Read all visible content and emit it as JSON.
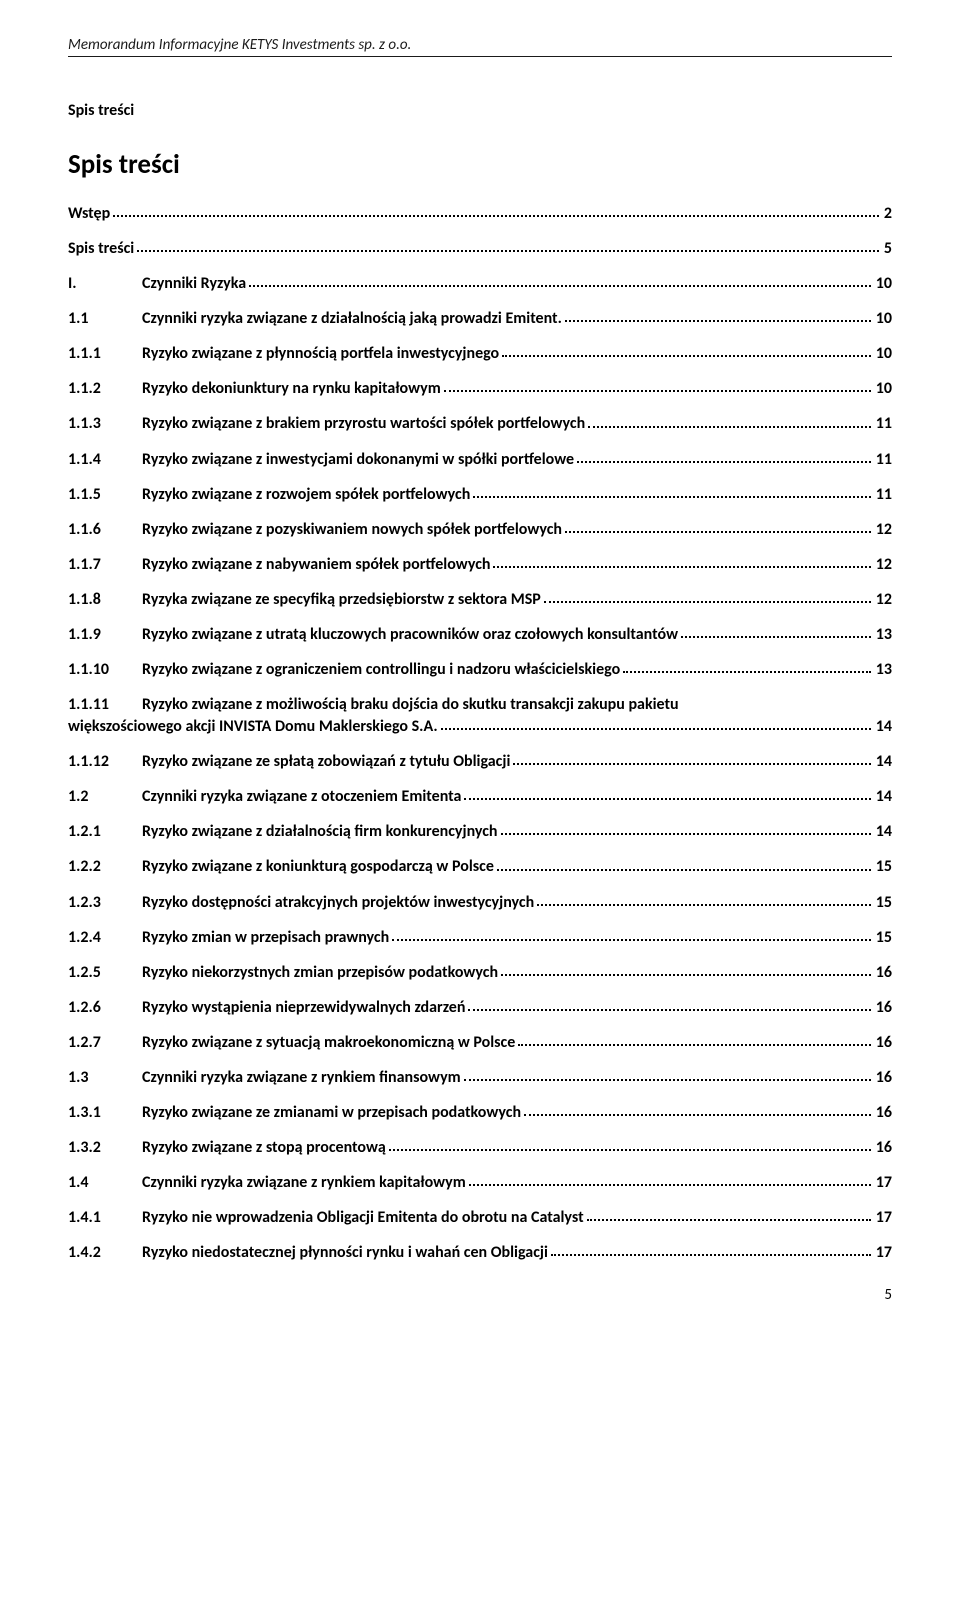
{
  "header": "Memorandum Informacyjne KETYS Investments sp. z o.o.",
  "section_label": "Spis treści",
  "main_title": "Spis treści",
  "page_number": "5",
  "toc": [
    {
      "num": "",
      "text": "Wstęp",
      "page": "2"
    },
    {
      "num": "",
      "text": "Spis treści",
      "page": "5"
    },
    {
      "num": "I.",
      "text": "Czynniki Ryzyka",
      "page": "10"
    },
    {
      "num": "1.1",
      "text": "Czynniki ryzyka związane z działalnością jaką prowadzi Emitent.",
      "page": "10"
    },
    {
      "num": "1.1.1",
      "text": "Ryzyko związane z płynnością portfela inwestycyjnego",
      "page": "10"
    },
    {
      "num": "1.1.2",
      "text": "Ryzyko dekoniunktury na rynku kapitałowym",
      "page": "10"
    },
    {
      "num": "1.1.3",
      "text": "Ryzyko związane z brakiem przyrostu wartości spółek portfelowych",
      "page": "11"
    },
    {
      "num": "1.1.4",
      "text": "Ryzyko związane z inwestycjami dokonanymi w spółki portfelowe",
      "page": "11"
    },
    {
      "num": "1.1.5",
      "text": "Ryzyko związane z rozwojem spółek portfelowych",
      "page": "11"
    },
    {
      "num": "1.1.6",
      "text": "Ryzyko związane z pozyskiwaniem nowych spółek portfelowych",
      "page": "12"
    },
    {
      "num": "1.1.7",
      "text": "Ryzyko związane z nabywaniem spółek portfelowych",
      "page": "12"
    },
    {
      "num": "1.1.8",
      "text": "Ryzyka związane ze specyfiką przedsiębiorstw z sektora MSP",
      "page": "12"
    },
    {
      "num": "1.1.9",
      "text": "Ryzyko związane z utratą kluczowych pracowników oraz czołowych konsultantów",
      "page": "13"
    },
    {
      "num": "1.1.10",
      "text": "Ryzyko związane z ograniczeniem controllingu i nadzoru właścicielskiego",
      "page": "13"
    },
    {
      "num": "1.1.11",
      "wrap": true,
      "text1": "Ryzyko  związane  z  możliwością  braku  dojścia  do  skutku  transakcji  zakupu  pakietu",
      "text2": "większościowego akcji INVISTA Domu Maklerskiego S.A.",
      "page": "14"
    },
    {
      "num": "1.1.12",
      "text": "Ryzyko związane ze spłatą zobowiązań z tytułu Obligacji",
      "page": "14"
    },
    {
      "num": "1.2",
      "text": "Czynniki ryzyka związane z otoczeniem Emitenta",
      "page": "14"
    },
    {
      "num": "1.2.1",
      "text": "Ryzyko związane z działalnością firm konkurencyjnych",
      "page": "14"
    },
    {
      "num": "1.2.2",
      "text": "Ryzyko związane z koniunkturą gospodarczą w Polsce",
      "page": "15"
    },
    {
      "num": "1.2.3",
      "text": "Ryzyko dostępności atrakcyjnych projektów inwestycyjnych",
      "page": "15"
    },
    {
      "num": "1.2.4",
      "text": "Ryzyko zmian w przepisach prawnych",
      "page": "15"
    },
    {
      "num": "1.2.5",
      "text": "Ryzyko niekorzystnych zmian przepisów podatkowych",
      "page": "16"
    },
    {
      "num": "1.2.6",
      "text": "Ryzyko wystąpienia nieprzewidywalnych zdarzeń",
      "page": "16"
    },
    {
      "num": "1.2.7",
      "text": "Ryzyko związane z sytuacją makroekonomiczną w Polsce",
      "page": "16"
    },
    {
      "num": "1.3",
      "text": "Czynniki ryzyka związane z rynkiem finansowym",
      "page": "16"
    },
    {
      "num": "1.3.1",
      "text": "Ryzyko związane ze zmianami w przepisach podatkowych",
      "page": "16"
    },
    {
      "num": "1.3.2",
      "text": "Ryzyko związane z stopą procentową",
      "page": "16"
    },
    {
      "num": "1.4",
      "text": "Czynniki ryzyka związane z rynkiem kapitałowym",
      "page": "17"
    },
    {
      "num": "1.4.1",
      "text": "Ryzyko nie wprowadzenia Obligacji Emitenta  do obrotu na Catalyst",
      "page": "17"
    },
    {
      "num": "1.4.2",
      "text": "Ryzyko niedostatecznej płynności rynku i wahań cen Obligacji",
      "page": "17"
    }
  ]
}
